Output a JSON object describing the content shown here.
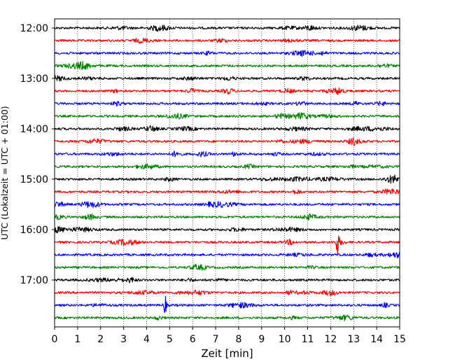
{
  "chart_data": {
    "type": "line",
    "title": "",
    "xlabel": "Zeit  [min]",
    "ylabel": "UTC (Lokalzeit = UTC + 01:00)",
    "xlim": [
      0,
      15
    ],
    "x_ticks": [
      "0",
      "1",
      "2",
      "3",
      "4",
      "5",
      "6",
      "7",
      "8",
      "9",
      "10",
      "11",
      "12",
      "13",
      "14",
      "15"
    ],
    "y_ticks": [
      "12:00",
      "13:00",
      "14:00",
      "15:00",
      "16:00",
      "17:00"
    ],
    "grid": "vertical dotted lines at each minute",
    "trace_colors": [
      "#000000",
      "#ff0000",
      "#0000ff",
      "#008000"
    ],
    "trace_interval_minutes": 15,
    "series": [
      {
        "start": "12:00",
        "color": "#000000"
      },
      {
        "start": "12:15",
        "color": "#ff0000"
      },
      {
        "start": "12:30",
        "color": "#0000ff"
      },
      {
        "start": "12:45",
        "color": "#008000"
      },
      {
        "start": "13:00",
        "color": "#000000"
      },
      {
        "start": "13:15",
        "color": "#ff0000"
      },
      {
        "start": "13:30",
        "color": "#0000ff"
      },
      {
        "start": "13:45",
        "color": "#008000"
      },
      {
        "start": "14:00",
        "color": "#000000"
      },
      {
        "start": "14:15",
        "color": "#ff0000"
      },
      {
        "start": "14:30",
        "color": "#0000ff"
      },
      {
        "start": "14:45",
        "color": "#008000"
      },
      {
        "start": "15:00",
        "color": "#000000"
      },
      {
        "start": "15:15",
        "color": "#ff0000"
      },
      {
        "start": "15:30",
        "color": "#0000ff"
      },
      {
        "start": "15:45",
        "color": "#008000"
      },
      {
        "start": "16:00",
        "color": "#000000"
      },
      {
        "start": "16:15",
        "color": "#ff0000",
        "event_minute": 12.3
      },
      {
        "start": "16:30",
        "color": "#0000ff"
      },
      {
        "start": "16:45",
        "color": "#008000"
      },
      {
        "start": "17:00",
        "color": "#000000"
      },
      {
        "start": "17:15",
        "color": "#ff0000"
      },
      {
        "start": "17:30",
        "color": "#0000ff",
        "event_minute": 4.8
      },
      {
        "start": "17:45",
        "color": "#008000"
      }
    ]
  }
}
